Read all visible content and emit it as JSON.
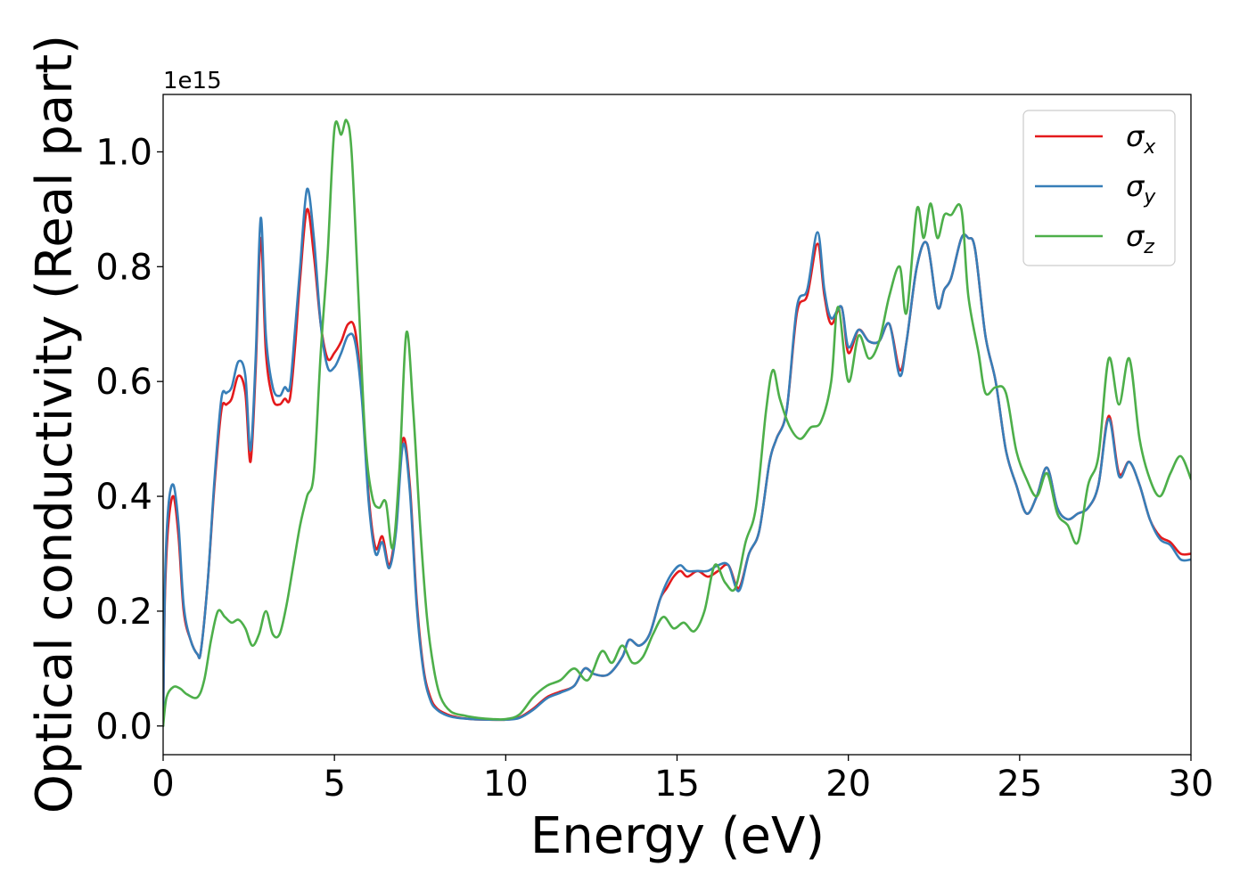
{
  "chart_data": {
    "type": "line",
    "xlabel": "Energy (eV)",
    "ylabel": "Optical conductivity (Real part)",
    "y_offset_label": "1e15",
    "xlim": [
      0,
      30
    ],
    "ylim": [
      -0.05,
      1.1
    ],
    "x_ticks": [
      0,
      5,
      10,
      15,
      20,
      25,
      30
    ],
    "x_tick_labels": [
      "0",
      "5",
      "10",
      "15",
      "20",
      "25",
      "30"
    ],
    "y_ticks": [
      0.0,
      0.2,
      0.4,
      0.6,
      0.8,
      1.0
    ],
    "y_tick_labels": [
      "0.0",
      "0.2",
      "0.4",
      "0.6",
      "0.8",
      "1.0"
    ],
    "grid": false,
    "legend_position": "top-right",
    "series": [
      {
        "name": "σ",
        "subscript": "x",
        "color": "#e41a1c",
        "x": [
          0,
          0.05,
          0.15,
          0.3,
          0.45,
          0.6,
          0.8,
          1.0,
          1.1,
          1.3,
          1.5,
          1.7,
          1.85,
          2.0,
          2.2,
          2.4,
          2.55,
          2.7,
          2.85,
          3.0,
          3.2,
          3.4,
          3.55,
          3.7,
          3.85,
          4.0,
          4.2,
          4.4,
          4.6,
          4.8,
          5.0,
          5.2,
          5.4,
          5.6,
          5.8,
          6.0,
          6.2,
          6.4,
          6.6,
          6.8,
          7.0,
          7.2,
          7.4,
          7.6,
          7.8,
          8.0,
          8.3,
          8.6,
          9.0,
          9.5,
          10.0,
          10.4,
          10.8,
          11.2,
          11.6,
          12.0,
          12.3,
          12.6,
          13.0,
          13.4,
          13.6,
          13.9,
          14.2,
          14.5,
          14.7,
          14.9,
          15.1,
          15.3,
          15.6,
          15.9,
          16.2,
          16.5,
          16.8,
          17.1,
          17.4,
          17.7,
          17.9,
          18.2,
          18.5,
          18.8,
          19.1,
          19.3,
          19.5,
          19.8,
          20.0,
          20.3,
          20.6,
          20.9,
          21.2,
          21.5,
          21.7,
          22.0,
          22.3,
          22.6,
          22.8,
          23.0,
          23.3,
          23.5,
          23.7,
          24.0,
          24.3,
          24.6,
          24.9,
          25.2,
          25.5,
          25.8,
          26.1,
          26.4,
          26.7,
          27.0,
          27.3,
          27.6,
          27.9,
          28.2,
          28.5,
          28.8,
          29.1,
          29.4,
          29.7,
          30.0
        ],
        "values": [
          0.0,
          0.22,
          0.35,
          0.4,
          0.33,
          0.2,
          0.15,
          0.125,
          0.13,
          0.25,
          0.42,
          0.55,
          0.56,
          0.57,
          0.61,
          0.58,
          0.46,
          0.62,
          0.85,
          0.65,
          0.57,
          0.56,
          0.57,
          0.57,
          0.66,
          0.78,
          0.9,
          0.82,
          0.7,
          0.64,
          0.65,
          0.67,
          0.7,
          0.69,
          0.58,
          0.4,
          0.31,
          0.33,
          0.28,
          0.35,
          0.5,
          0.42,
          0.22,
          0.1,
          0.05,
          0.03,
          0.02,
          0.015,
          0.012,
          0.011,
          0.011,
          0.015,
          0.03,
          0.05,
          0.06,
          0.07,
          0.1,
          0.09,
          0.09,
          0.12,
          0.15,
          0.14,
          0.16,
          0.22,
          0.24,
          0.26,
          0.27,
          0.26,
          0.27,
          0.26,
          0.27,
          0.28,
          0.24,
          0.3,
          0.34,
          0.46,
          0.5,
          0.55,
          0.72,
          0.75,
          0.84,
          0.75,
          0.7,
          0.73,
          0.65,
          0.69,
          0.67,
          0.67,
          0.7,
          0.62,
          0.67,
          0.8,
          0.84,
          0.73,
          0.76,
          0.78,
          0.85,
          0.85,
          0.83,
          0.68,
          0.6,
          0.48,
          0.42,
          0.37,
          0.4,
          0.45,
          0.38,
          0.36,
          0.37,
          0.38,
          0.42,
          0.54,
          0.44,
          0.46,
          0.42,
          0.36,
          0.33,
          0.32,
          0.3,
          0.3
        ]
      },
      {
        "name": "σ",
        "subscript": "y",
        "color": "#377eb8",
        "x": [
          0,
          0.05,
          0.15,
          0.3,
          0.45,
          0.6,
          0.8,
          1.0,
          1.1,
          1.3,
          1.5,
          1.7,
          1.85,
          2.0,
          2.2,
          2.4,
          2.55,
          2.7,
          2.85,
          3.0,
          3.2,
          3.4,
          3.55,
          3.7,
          3.85,
          4.0,
          4.2,
          4.4,
          4.6,
          4.8,
          5.0,
          5.2,
          5.4,
          5.6,
          5.8,
          6.0,
          6.2,
          6.4,
          6.6,
          6.8,
          7.0,
          7.2,
          7.4,
          7.6,
          7.8,
          8.0,
          8.3,
          8.6,
          9.0,
          9.5,
          10.0,
          10.4,
          10.8,
          11.2,
          11.6,
          12.0,
          12.3,
          12.6,
          13.0,
          13.4,
          13.6,
          13.9,
          14.2,
          14.5,
          14.7,
          14.9,
          15.1,
          15.3,
          15.6,
          15.9,
          16.2,
          16.5,
          16.8,
          17.1,
          17.4,
          17.7,
          17.9,
          18.2,
          18.5,
          18.8,
          19.1,
          19.3,
          19.5,
          19.8,
          20.0,
          20.3,
          20.6,
          20.9,
          21.2,
          21.5,
          21.7,
          22.0,
          22.3,
          22.6,
          22.8,
          23.0,
          23.3,
          23.5,
          23.7,
          24.0,
          24.3,
          24.6,
          24.9,
          25.2,
          25.5,
          25.8,
          26.1,
          26.4,
          26.7,
          27.0,
          27.3,
          27.6,
          27.9,
          28.2,
          28.5,
          28.8,
          29.1,
          29.4,
          29.7,
          30.0
        ],
        "values": [
          0.0,
          0.24,
          0.38,
          0.42,
          0.35,
          0.21,
          0.15,
          0.125,
          0.13,
          0.25,
          0.43,
          0.57,
          0.58,
          0.59,
          0.635,
          0.61,
          0.48,
          0.64,
          0.885,
          0.68,
          0.59,
          0.575,
          0.59,
          0.59,
          0.69,
          0.8,
          0.935,
          0.85,
          0.7,
          0.625,
          0.625,
          0.65,
          0.68,
          0.67,
          0.57,
          0.39,
          0.3,
          0.32,
          0.275,
          0.34,
          0.49,
          0.41,
          0.21,
          0.095,
          0.045,
          0.028,
          0.018,
          0.014,
          0.012,
          0.011,
          0.011,
          0.014,
          0.028,
          0.048,
          0.058,
          0.07,
          0.1,
          0.09,
          0.09,
          0.12,
          0.15,
          0.14,
          0.16,
          0.22,
          0.25,
          0.27,
          0.28,
          0.27,
          0.27,
          0.27,
          0.28,
          0.28,
          0.235,
          0.3,
          0.34,
          0.46,
          0.5,
          0.55,
          0.73,
          0.76,
          0.86,
          0.76,
          0.71,
          0.73,
          0.66,
          0.69,
          0.67,
          0.67,
          0.7,
          0.61,
          0.67,
          0.8,
          0.84,
          0.73,
          0.76,
          0.78,
          0.85,
          0.85,
          0.83,
          0.68,
          0.6,
          0.48,
          0.42,
          0.37,
          0.4,
          0.45,
          0.38,
          0.36,
          0.37,
          0.38,
          0.42,
          0.535,
          0.435,
          0.46,
          0.42,
          0.36,
          0.325,
          0.315,
          0.29,
          0.29
        ]
      },
      {
        "name": "σ",
        "subscript": "z",
        "color": "#4daf4a",
        "x": [
          0,
          0.1,
          0.3,
          0.5,
          0.7,
          1.0,
          1.2,
          1.4,
          1.6,
          1.8,
          2.0,
          2.2,
          2.4,
          2.6,
          2.8,
          3.0,
          3.2,
          3.4,
          3.6,
          3.8,
          4.0,
          4.2,
          4.4,
          4.6,
          4.8,
          5.0,
          5.2,
          5.35,
          5.5,
          5.7,
          5.9,
          6.1,
          6.3,
          6.5,
          6.7,
          6.9,
          7.1,
          7.3,
          7.5,
          7.7,
          7.9,
          8.1,
          8.4,
          8.8,
          9.2,
          9.6,
          10.0,
          10.4,
          10.8,
          11.2,
          11.6,
          12.0,
          12.4,
          12.8,
          13.1,
          13.4,
          13.7,
          14.0,
          14.3,
          14.6,
          14.9,
          15.2,
          15.5,
          15.8,
          16.1,
          16.4,
          16.7,
          17.0,
          17.3,
          17.6,
          17.8,
          18.0,
          18.3,
          18.6,
          18.9,
          19.2,
          19.5,
          19.7,
          20.0,
          20.3,
          20.6,
          20.9,
          21.2,
          21.5,
          21.7,
          22.0,
          22.2,
          22.4,
          22.6,
          22.8,
          23.0,
          23.3,
          23.5,
          23.8,
          24.0,
          24.3,
          24.6,
          24.9,
          25.2,
          25.5,
          25.8,
          26.1,
          26.4,
          26.7,
          27.0,
          27.3,
          27.6,
          27.9,
          28.2,
          28.5,
          28.8,
          29.1,
          29.4,
          29.7,
          30.0
        ],
        "values": [
          0.0,
          0.05,
          0.068,
          0.065,
          0.055,
          0.05,
          0.08,
          0.15,
          0.2,
          0.19,
          0.18,
          0.185,
          0.17,
          0.14,
          0.16,
          0.2,
          0.16,
          0.16,
          0.21,
          0.28,
          0.35,
          0.4,
          0.44,
          0.65,
          0.82,
          1.04,
          1.03,
          1.055,
          1.0,
          0.75,
          0.5,
          0.4,
          0.38,
          0.39,
          0.31,
          0.45,
          0.685,
          0.55,
          0.35,
          0.19,
          0.1,
          0.05,
          0.025,
          0.018,
          0.014,
          0.012,
          0.012,
          0.02,
          0.05,
          0.07,
          0.08,
          0.1,
          0.08,
          0.13,
          0.11,
          0.14,
          0.11,
          0.12,
          0.16,
          0.19,
          0.17,
          0.18,
          0.165,
          0.2,
          0.28,
          0.25,
          0.24,
          0.32,
          0.38,
          0.55,
          0.62,
          0.57,
          0.52,
          0.5,
          0.52,
          0.53,
          0.6,
          0.73,
          0.6,
          0.68,
          0.64,
          0.67,
          0.75,
          0.8,
          0.72,
          0.9,
          0.85,
          0.91,
          0.85,
          0.89,
          0.89,
          0.9,
          0.75,
          0.65,
          0.58,
          0.59,
          0.58,
          0.48,
          0.43,
          0.4,
          0.44,
          0.37,
          0.35,
          0.32,
          0.42,
          0.47,
          0.64,
          0.56,
          0.64,
          0.5,
          0.43,
          0.4,
          0.44,
          0.47,
          0.43
        ]
      }
    ]
  }
}
